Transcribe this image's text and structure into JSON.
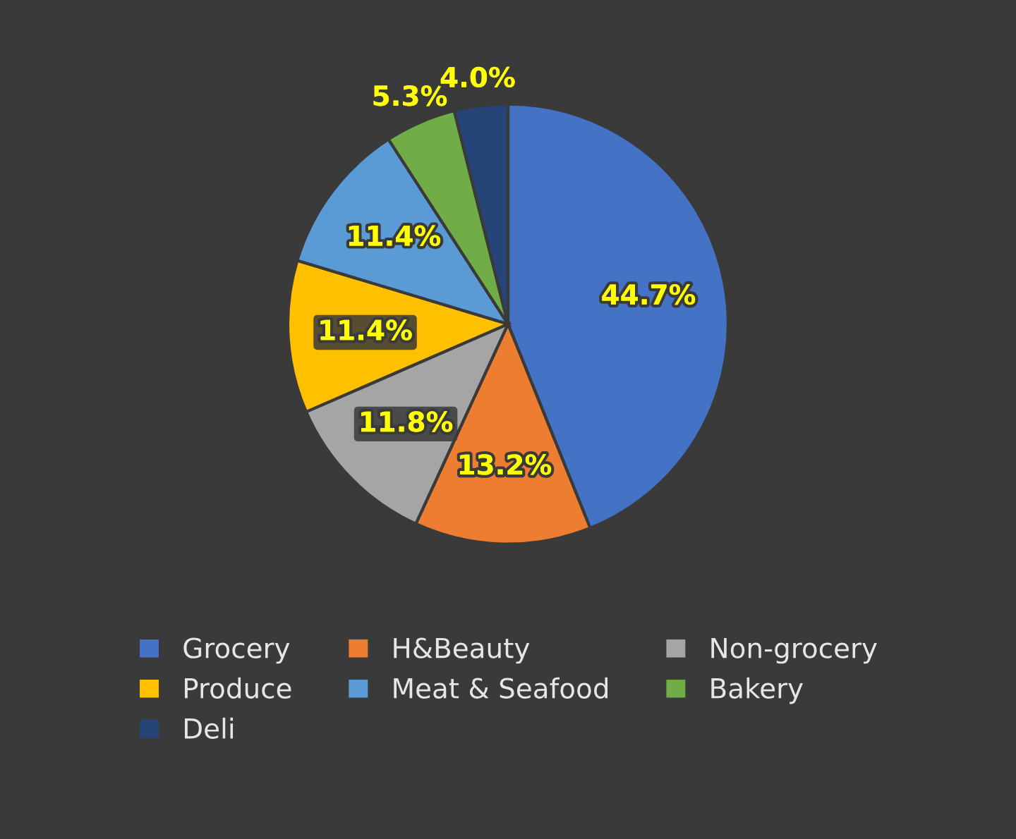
{
  "chart_data": {
    "type": "pie",
    "categories": [
      "Grocery",
      "H&Beauty",
      "Non-grocery",
      "Produce",
      "Meat & Seafood",
      "Bakery",
      "Deli"
    ],
    "values": [
      44.7,
      13.2,
      11.8,
      11.4,
      11.4,
      5.3,
      4.0
    ],
    "value_labels": [
      "44.7%",
      "13.2%",
      "11.8%",
      "11.4%",
      "11.4%",
      "5.3%",
      "4.0%"
    ],
    "colors": [
      "#4472c4",
      "#ed7d31",
      "#a5a5a5",
      "#ffc000",
      "#5b9bd5",
      "#70ad47",
      "#264478"
    ],
    "legend": "bottom"
  }
}
